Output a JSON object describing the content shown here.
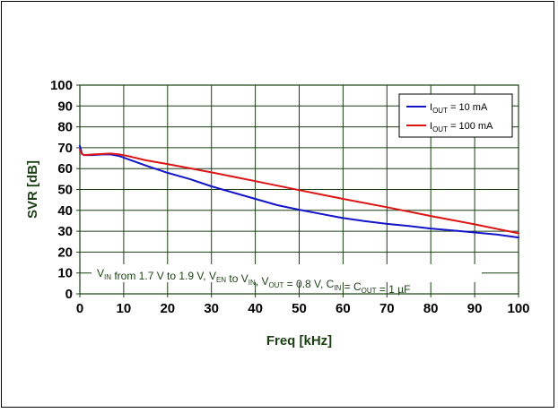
{
  "chart_data": {
    "type": "line",
    "title": "",
    "xlabel": "Freq [kHz]",
    "ylabel": "SVR [dB]",
    "xlim": [
      0,
      100
    ],
    "ylim": [
      0,
      100
    ],
    "x_ticks": [
      "0",
      "10",
      "20",
      "30",
      "40",
      "50",
      "60",
      "70",
      "80",
      "90",
      "100"
    ],
    "y_ticks": [
      "0",
      "10",
      "20",
      "30",
      "40",
      "50",
      "60",
      "70",
      "80",
      "90",
      "100"
    ],
    "grid": true,
    "legend_position": "top-right",
    "series": [
      {
        "name": "I_OUT = 10 mA",
        "legend": {
          "base": "I",
          "sub": "OUT",
          "rest": " = 10 mA"
        },
        "color": "#1414c8",
        "points": [
          [
            0,
            71
          ],
          [
            0.5,
            67
          ],
          [
            1,
            66.5
          ],
          [
            3,
            66.5
          ],
          [
            5,
            66.8
          ],
          [
            7,
            66.8
          ],
          [
            9,
            66
          ],
          [
            11,
            64.5
          ],
          [
            15,
            61.5
          ],
          [
            20,
            58
          ],
          [
            25,
            55
          ],
          [
            30,
            51.5
          ],
          [
            35,
            48.5
          ],
          [
            40,
            45.5
          ],
          [
            45,
            42.5
          ],
          [
            50,
            40.3
          ],
          [
            55,
            38.3
          ],
          [
            60,
            36.3
          ],
          [
            65,
            34.8
          ],
          [
            70,
            33.5
          ],
          [
            75,
            32.5
          ],
          [
            80,
            31.3
          ],
          [
            85,
            30.4
          ],
          [
            90,
            29.4
          ],
          [
            95,
            28.4
          ],
          [
            100,
            27
          ]
        ]
      },
      {
        "name": "I_OUT = 100 mA",
        "legend": {
          "base": "I",
          "sub": "OUT",
          "rest": " = 100 mA"
        },
        "color": "#dc1414",
        "points": [
          [
            0,
            69
          ],
          [
            0.5,
            67
          ],
          [
            1,
            66.5
          ],
          [
            3,
            66.8
          ],
          [
            5,
            67
          ],
          [
            7,
            67.2
          ],
          [
            9,
            66.8
          ],
          [
            11,
            66
          ],
          [
            15,
            64
          ],
          [
            20,
            62.2
          ],
          [
            30,
            58.2
          ],
          [
            40,
            54
          ],
          [
            50,
            49.7
          ],
          [
            60,
            45.5
          ],
          [
            70,
            41.5
          ],
          [
            80,
            37.3
          ],
          [
            90,
            33.3
          ],
          [
            100,
            29
          ]
        ]
      }
    ],
    "annotation": {
      "parts": [
        {
          "text": "V",
          "sub": "IN"
        },
        {
          "text": " from 1.7 V to 1.9 V, V",
          "sub": "EN"
        },
        {
          "text": "  to V",
          "sub": "IN"
        },
        {
          "text": ", V",
          "sub": "OUT"
        },
        {
          "text": " = 0.8 V, C",
          "sub": "IN"
        },
        {
          "text": " = C",
          "sub": "OUT"
        },
        {
          "text": " = 1 µF",
          "sub": ""
        }
      ]
    }
  }
}
